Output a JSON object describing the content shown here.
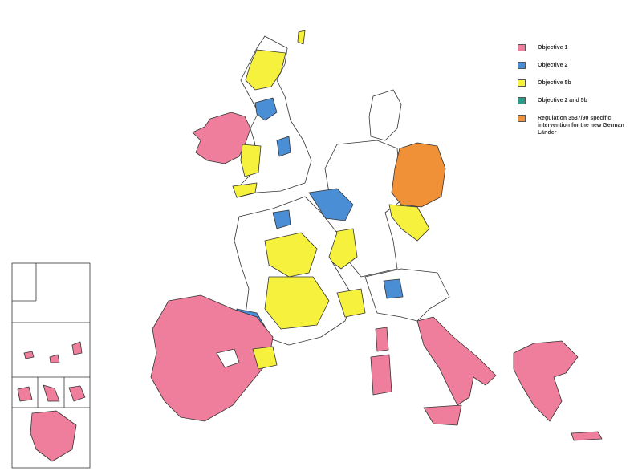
{
  "legend": {
    "items": [
      {
        "label": "Objective 1",
        "color": "#ee7e9c"
      },
      {
        "label": "Objective 2",
        "color": "#4a8ed6"
      },
      {
        "label": "Objective 5b",
        "color": "#f6f13c"
      },
      {
        "label": "Objective 2 and 5b",
        "color": "#2b9a86"
      },
      {
        "label": "Regulation 3537/90 specific intervention for the new German Länder",
        "color": "#f09138"
      }
    ]
  }
}
